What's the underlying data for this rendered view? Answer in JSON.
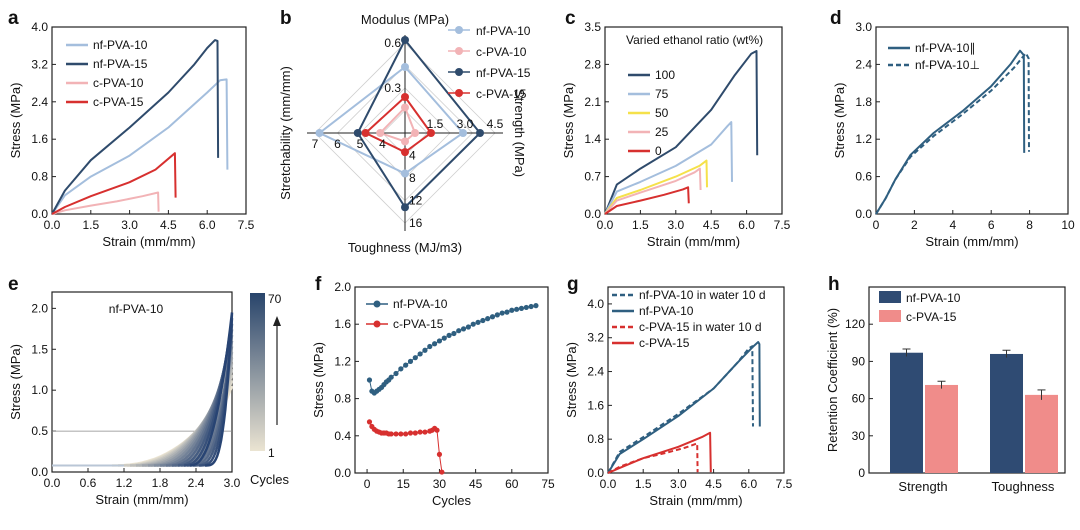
{
  "chart_data": [
    {
      "panel": "a",
      "type": "line",
      "xlabel": "Strain (mm/mm)",
      "ylabel": "Stress (MPa)",
      "xlim": [
        0,
        7.5
      ],
      "ylim": [
        0,
        4.0
      ],
      "xticks": [
        "0.0",
        "1.5",
        "3.0",
        "4.5",
        "6.0",
        "7.5"
      ],
      "yticks": [
        "0.0",
        "0.8",
        "1.6",
        "2.4",
        "3.2",
        "4.0"
      ],
      "legend": "top-left",
      "series": [
        {
          "name": "nf-PVA-10",
          "color": "#a4bedd",
          "x": [
            0,
            0.5,
            1.5,
            3.0,
            4.5,
            6.0,
            6.5,
            6.75,
            6.78
          ],
          "y": [
            0,
            0.4,
            0.8,
            1.25,
            1.85,
            2.6,
            2.86,
            2.88,
            0.95
          ]
        },
        {
          "name": "nf-PVA-15",
          "color": "#2f4b6c",
          "x": [
            0,
            0.5,
            1.5,
            3.0,
            4.5,
            5.5,
            6.0,
            6.3,
            6.4,
            6.42
          ],
          "y": [
            0,
            0.5,
            1.15,
            1.85,
            2.6,
            3.2,
            3.55,
            3.72,
            3.7,
            1.2
          ]
        },
        {
          "name": "c-PVA-10",
          "color": "#f2b3b6",
          "x": [
            0,
            0.5,
            1.5,
            2.5,
            3.5,
            4.1,
            4.12
          ],
          "y": [
            0,
            0.08,
            0.18,
            0.27,
            0.38,
            0.46,
            0.05
          ]
        },
        {
          "name": "c-PVA-15",
          "color": "#d7302f",
          "x": [
            0,
            0.5,
            1.5,
            3.0,
            4.0,
            4.75,
            4.78
          ],
          "y": [
            0,
            0.15,
            0.38,
            0.68,
            0.95,
            1.3,
            0.35
          ]
        }
      ]
    },
    {
      "panel": "b",
      "type": "radar",
      "axes": [
        "Modulus (MPa)",
        "Strength (MPa)",
        "Toughness (MJ/m3)",
        "Stretchability (mm/mm)"
      ],
      "tick_labels": {
        "modulus": [
          "0.3",
          "0.6"
        ],
        "strength": [
          "1.5",
          "3.0",
          "4.5"
        ],
        "toughness": [
          "4",
          "8",
          "12",
          "16"
        ],
        "stretch": [
          "4",
          "5",
          "6",
          "7"
        ]
      },
      "series": [
        {
          "name": "nf-PVA-10",
          "color": "#a4bedd",
          "values": [
            0.44,
            2.9,
            7.2,
            6.8
          ]
        },
        {
          "name": "c-PVA-10",
          "color": "#f2b3b6",
          "values": [
            0.17,
            0.5,
            1.5,
            4.1
          ]
        },
        {
          "name": "nf-PVA-15",
          "color": "#2f4b6c",
          "values": [
            0.62,
            3.75,
            13.2,
            5.1
          ]
        },
        {
          "name": "c-PVA-15",
          "color": "#d7302f",
          "values": [
            0.24,
            1.3,
            3.4,
            4.75
          ]
        }
      ]
    },
    {
      "panel": "c",
      "type": "line",
      "xlabel": "Strain (mm/mm)",
      "ylabel": "Stress (MPa)",
      "xlim": [
        0,
        7.5
      ],
      "ylim": [
        0,
        3.5
      ],
      "xticks": [
        "0.0",
        "1.5",
        "3.0",
        "4.5",
        "6.0",
        "7.5"
      ],
      "yticks": [
        "0.0",
        "0.7",
        "1.4",
        "2.1",
        "2.8",
        "3.5"
      ],
      "legend_title": "Varied ethanol ratio (wt%)",
      "series": [
        {
          "name": "100",
          "color": "#2f4b6c",
          "x": [
            0,
            0.5,
            1.5,
            3.0,
            4.5,
            5.5,
            6.2,
            6.42,
            6.45
          ],
          "y": [
            0,
            0.55,
            0.85,
            1.25,
            1.95,
            2.6,
            3.0,
            3.05,
            1.1
          ]
        },
        {
          "name": "75",
          "color": "#a4bedd",
          "x": [
            0,
            0.5,
            1.5,
            3.0,
            4.5,
            5.2,
            5.35,
            5.38
          ],
          "y": [
            0,
            0.42,
            0.6,
            0.9,
            1.3,
            1.65,
            1.72,
            0.6
          ]
        },
        {
          "name": "50",
          "color": "#f5e14a",
          "x": [
            0,
            0.5,
            1.5,
            3.0,
            4.0,
            4.3,
            4.32
          ],
          "y": [
            0,
            0.3,
            0.45,
            0.7,
            0.9,
            1.0,
            0.5
          ]
        },
        {
          "name": "25",
          "color": "#f2b3b6",
          "x": [
            0,
            0.5,
            1.5,
            3.0,
            3.8,
            4.02,
            4.05
          ],
          "y": [
            0,
            0.25,
            0.4,
            0.62,
            0.78,
            0.85,
            0.45
          ]
        },
        {
          "name": "0",
          "color": "#d7302f",
          "x": [
            0,
            0.5,
            1.5,
            2.5,
            3.3,
            3.52,
            3.55
          ],
          "y": [
            0,
            0.15,
            0.25,
            0.36,
            0.46,
            0.5,
            0.2
          ]
        }
      ]
    },
    {
      "panel": "d",
      "type": "line",
      "xlabel": "Strain (mm/mm)",
      "ylabel": "Stress (MPa)",
      "xlim": [
        0,
        10
      ],
      "ylim": [
        0,
        3.0
      ],
      "xticks": [
        "0",
        "2",
        "4",
        "6",
        "8",
        "10"
      ],
      "yticks": [
        "0.0",
        "0.6",
        "1.2",
        "1.8",
        "2.4",
        "3.0"
      ],
      "series": [
        {
          "name": "nf-PVA-10∥",
          "color": "#2f5f80",
          "dash": false,
          "x": [
            0,
            0.5,
            1.0,
            1.8,
            3.0,
            4.5,
            6.0,
            7.0,
            7.5,
            7.7,
            7.72
          ],
          "y": [
            0,
            0.25,
            0.55,
            0.95,
            1.3,
            1.65,
            2.05,
            2.4,
            2.62,
            2.55,
            0.98
          ]
        },
        {
          "name": "nf-PVA-10⊥",
          "color": "#2f5f80",
          "dash": true,
          "x": [
            0,
            0.5,
            1.0,
            1.8,
            3.0,
            4.5,
            6.0,
            7.2,
            7.8,
            7.95,
            7.97
          ],
          "y": [
            0,
            0.25,
            0.55,
            0.92,
            1.25,
            1.6,
            1.98,
            2.35,
            2.58,
            2.5,
            1.0
          ]
        }
      ]
    },
    {
      "panel": "e",
      "type": "line",
      "xlabel": "Strain (mm/mm)",
      "ylabel": "Stress (MPa)",
      "xlim": [
        0,
        3.0
      ],
      "ylim": [
        0,
        2.2
      ],
      "xticks": [
        "0.0",
        "0.6",
        "1.2",
        "1.8",
        "2.4",
        "3.0"
      ],
      "yticks": [
        "0.0",
        "0.5",
        "1.0",
        "1.5",
        "2.0"
      ],
      "annotation": "nf-PVA-10",
      "colorbar": {
        "label": "Cycles",
        "min": "1",
        "max": "70"
      }
    },
    {
      "panel": "f",
      "type": "scatter",
      "xlabel": "Cycles",
      "ylabel": "Stress (MPa)",
      "xlim": [
        -5,
        75
      ],
      "ylim": [
        0,
        2.0
      ],
      "xticks": [
        "0",
        "15",
        "30",
        "45",
        "60",
        "75"
      ],
      "yticks": [
        "0.0",
        "0.4",
        "0.8",
        "1.2",
        "1.6",
        "2.0"
      ],
      "series": [
        {
          "name": "nf-PVA-10",
          "color": "#2f5f80",
          "x": [
            1,
            2,
            3,
            4,
            5,
            6,
            7,
            8,
            9,
            10,
            12,
            14,
            16,
            18,
            20,
            22,
            24,
            26,
            28,
            30,
            32,
            34,
            36,
            38,
            40,
            42,
            44,
            46,
            48,
            50,
            52,
            54,
            56,
            58,
            60,
            62,
            64,
            66,
            68,
            70
          ],
          "y": [
            1.0,
            0.88,
            0.86,
            0.88,
            0.9,
            0.92,
            0.95,
            0.98,
            1.0,
            1.03,
            1.07,
            1.12,
            1.16,
            1.2,
            1.24,
            1.28,
            1.32,
            1.36,
            1.39,
            1.42,
            1.45,
            1.48,
            1.5,
            1.53,
            1.55,
            1.57,
            1.6,
            1.62,
            1.64,
            1.66,
            1.68,
            1.7,
            1.72,
            1.73,
            1.75,
            1.76,
            1.77,
            1.78,
            1.79,
            1.8
          ]
        },
        {
          "name": "c-PVA-15",
          "color": "#d7302f",
          "x": [
            1,
            2,
            3,
            4,
            5,
            6,
            7,
            8,
            9,
            10,
            12,
            14,
            16,
            18,
            20,
            22,
            24,
            26,
            27,
            28,
            29,
            30,
            31
          ],
          "y": [
            0.55,
            0.5,
            0.47,
            0.45,
            0.44,
            0.43,
            0.43,
            0.43,
            0.42,
            0.42,
            0.42,
            0.42,
            0.42,
            0.43,
            0.43,
            0.44,
            0.44,
            0.45,
            0.46,
            0.48,
            0.46,
            0.2,
            0.01
          ]
        }
      ]
    },
    {
      "panel": "g",
      "type": "line",
      "xlabel": "Strain (mm/mm)",
      "ylabel": "Stress (MPa)",
      "xlim": [
        0,
        7.5
      ],
      "ylim": [
        0,
        4.4
      ],
      "xticks": [
        "0.0",
        "1.5",
        "3.0",
        "4.5",
        "6.0",
        "7.5"
      ],
      "yticks": [
        "0.0",
        "0.8",
        "1.6",
        "2.4",
        "3.2",
        "4.0"
      ],
      "series": [
        {
          "name": "nf-PVA-10 in water 10 d",
          "color": "#2f5f80",
          "dash": true,
          "x": [
            0,
            0.5,
            1.5,
            3.0,
            4.5,
            5.5,
            6.0,
            6.15,
            6.18
          ],
          "y": [
            0,
            0.5,
            0.85,
            1.4,
            2.0,
            2.6,
            2.95,
            3.0,
            1.1
          ]
        },
        {
          "name": "nf-PVA-10",
          "color": "#2f5f80",
          "dash": false,
          "x": [
            0,
            0.5,
            1.5,
            3.0,
            4.5,
            5.5,
            6.2,
            6.4,
            6.45,
            6.47
          ],
          "y": [
            0,
            0.45,
            0.8,
            1.35,
            2.0,
            2.6,
            3.0,
            3.1,
            3.05,
            1.1
          ]
        },
        {
          "name": "c-PVA-15 in water 10 d",
          "color": "#d7302f",
          "dash": true,
          "x": [
            0,
            0.5,
            1.5,
            2.5,
            3.3,
            3.8,
            3.82
          ],
          "y": [
            0,
            0.15,
            0.35,
            0.48,
            0.6,
            0.7,
            0.02
          ]
        },
        {
          "name": "c-PVA-15",
          "color": "#d7302f",
          "dash": false,
          "x": [
            0,
            0.5,
            1.5,
            3.0,
            4.0,
            4.35,
            4.38
          ],
          "y": [
            0,
            0.12,
            0.35,
            0.62,
            0.85,
            0.95,
            0.02
          ]
        }
      ]
    },
    {
      "panel": "h",
      "type": "bar",
      "ylabel": "Retention Coefficient (%)",
      "ylim": [
        0,
        150
      ],
      "yticks": [
        "0",
        "30",
        "60",
        "90",
        "120"
      ],
      "categories": [
        "Strength",
        "Toughness"
      ],
      "series": [
        {
          "name": "nf-PVA-10",
          "color": "#2f4b73",
          "values": [
            97,
            96
          ],
          "err": [
            3,
            3
          ]
        },
        {
          "name": "c-PVA-15",
          "color": "#f08c8a",
          "values": [
            71,
            63
          ],
          "err": [
            3,
            4
          ]
        }
      ]
    }
  ]
}
